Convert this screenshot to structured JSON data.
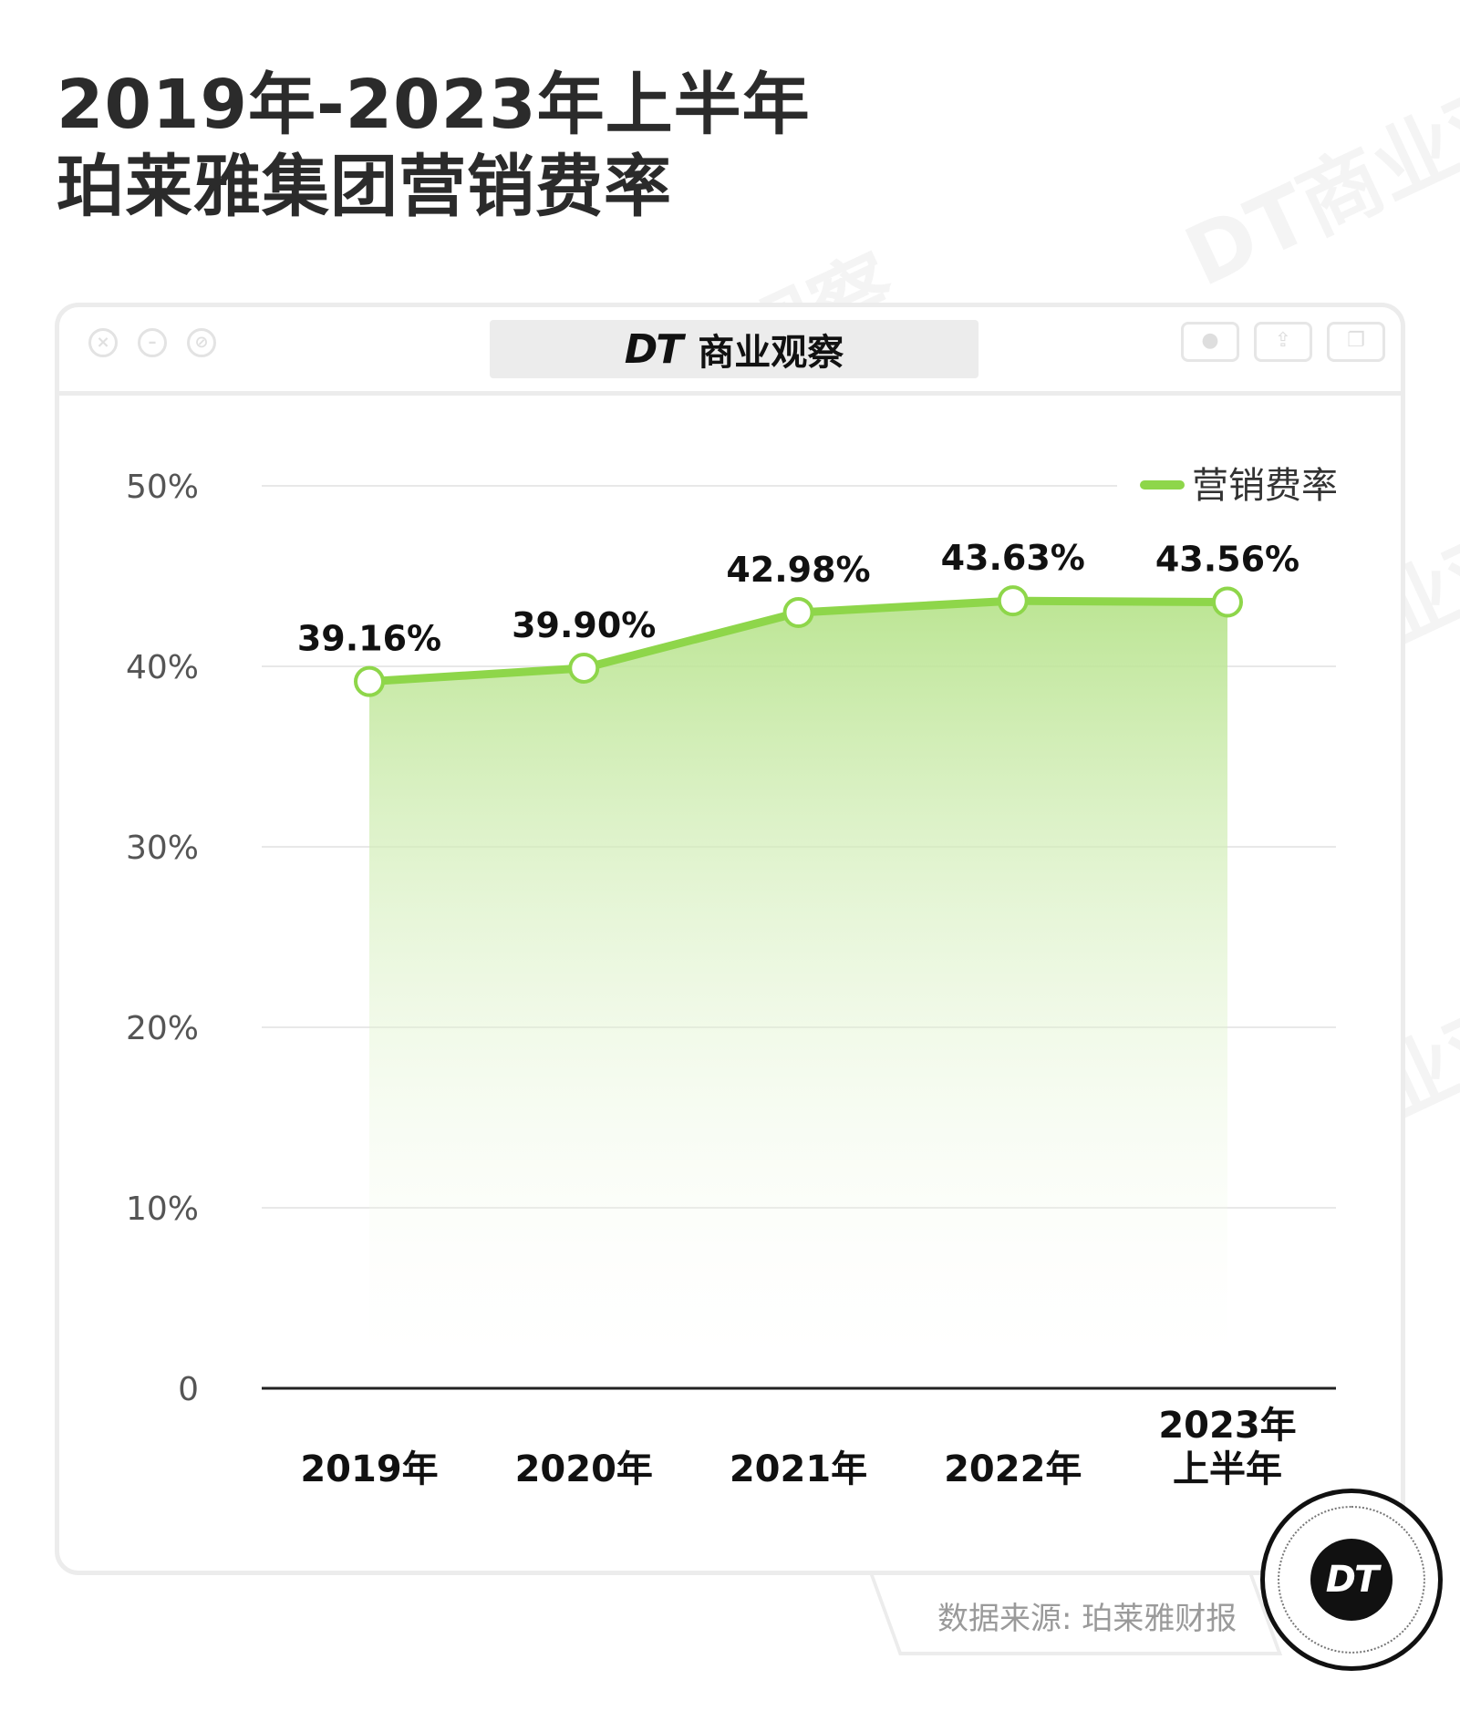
{
  "title": {
    "line1": "2019年-2023年上半年",
    "line2": "珀莱雅集团营销费率"
  },
  "window": {
    "tab_logo": "DT",
    "tab_text": "商业观察"
  },
  "watermark": "DT商业观察",
  "colors": {
    "accent": "#8ed64a",
    "fill_top": "#b9e48f",
    "grid": "#e8e8e8",
    "axis": "#222222"
  },
  "chart_data": {
    "type": "area",
    "categories": [
      "2019年",
      "2020年",
      "2021年",
      "2022年",
      "2023年\n上半年"
    ],
    "category_lines": [
      [
        "2019年"
      ],
      [
        "2020年"
      ],
      [
        "2021年"
      ],
      [
        "2022年"
      ],
      [
        "2023年",
        "上半年"
      ]
    ],
    "series": [
      {
        "name": "营销费率",
        "values": [
          39.16,
          39.9,
          42.98,
          43.63,
          43.56
        ],
        "labels": [
          "39.16%",
          "39.90%",
          "42.98%",
          "43.63%",
          "43.56%"
        ]
      }
    ],
    "yticks": [
      {
        "value": 0,
        "label": "0"
      },
      {
        "value": 10,
        "label": "10%"
      },
      {
        "value": 20,
        "label": "20%"
      },
      {
        "value": 30,
        "label": "30%"
      },
      {
        "value": 40,
        "label": "40%"
      },
      {
        "value": 50,
        "label": "50%"
      }
    ],
    "ylim": [
      0,
      50
    ],
    "grid": true,
    "legend_position": "top-right"
  },
  "footer": {
    "source": "数据来源: 珀莱雅财报",
    "badge": "DT"
  }
}
